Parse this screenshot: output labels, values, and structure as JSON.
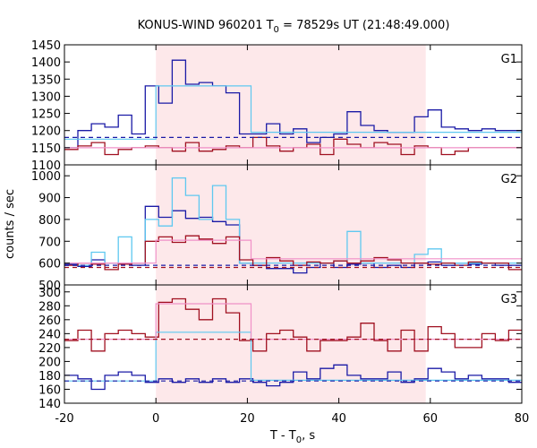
{
  "chart_data": {
    "type": "line",
    "title": {
      "prefix": "KONUS-WIND 960201 T",
      "sub": "0",
      "suffix": " = 78529s UT (21:48:49.000)"
    },
    "xlabel": {
      "prefix": "T - T",
      "sub": "0",
      "suffix": ", s"
    },
    "ylabel": "counts / sec",
    "xlim": [
      -20,
      80
    ],
    "xticks": [
      -20,
      0,
      20,
      40,
      60,
      80
    ],
    "shaded_interval": [
      0,
      59
    ],
    "colors": {
      "dark_blue": "#1a1aa6",
      "light_blue": "#5ec8f0",
      "dark_red": "#a01020",
      "pink": "#f090c8",
      "shade": "#fde8ea"
    },
    "panels": [
      {
        "label": "G1",
        "ylim": [
          1100,
          1450
        ],
        "yticks": [
          1100,
          1150,
          1200,
          1250,
          1300,
          1350,
          1400,
          1450
        ],
        "hist_start": -20,
        "hist_step": 2.944,
        "series": [
          {
            "name": "",
            "color": "dark_blue",
            "style": "step",
            "values": [
              1150,
              1200,
              1220,
              1210,
              1245,
              1190,
              1330,
              1280,
              1405,
              1335,
              1340,
              1330,
              1310,
              1190,
              1190,
              1220,
              1190,
              1205,
              1165,
              1180,
              1190,
              1255,
              1215,
              1200,
              1195,
              1195,
              1240,
              1260,
              1210,
              1205,
              1200,
              1205,
              1200,
              1200
            ]
          },
          {
            "name": "",
            "color": "dark_red",
            "style": "step",
            "values": [
              1145,
              1155,
              1165,
              1130,
              1145,
              1150,
              1155,
              1150,
              1140,
              1165,
              1140,
              1145,
              1155,
              1150,
              1180,
              1155,
              1140,
              1150,
              1160,
              1130,
              1175,
              1160,
              1150,
              1165,
              1160,
              1130,
              1155,
              1150,
              1130,
              1140,
              1150,
              1150,
              1150,
              1150
            ]
          },
          {
            "name": "",
            "color": "light_blue",
            "style": "segments",
            "segments": [
              [
                -20,
                1175,
                0,
                1175
              ],
              [
                0,
                1330,
                20.8,
                1330
              ],
              [
                20.8,
                1195,
                80,
                1195
              ]
            ]
          },
          {
            "name": "",
            "color": "pink",
            "style": "segments",
            "segments": [
              [
                -20,
                1150,
                80,
                1150
              ]
            ]
          },
          {
            "name": "",
            "color": "dark_blue",
            "style": "dashed",
            "segments": [
              [
                -20,
                1180,
                80,
                1180
              ]
            ]
          }
        ]
      },
      {
        "label": "G2",
        "ylim": [
          500,
          1050
        ],
        "yticks": [
          500,
          600,
          700,
          800,
          900,
          1000
        ],
        "hist_start": -20,
        "hist_step": 2.944,
        "series": [
          {
            "name": "",
            "color": "dark_blue",
            "style": "step",
            "values": [
              595,
              585,
              615,
              600,
              600,
              590,
              860,
              810,
              840,
              805,
              810,
              790,
              775,
              600,
              590,
              575,
              575,
              555,
              580,
              600,
              580,
              595,
              600,
              580,
              590,
              580,
              600,
              605,
              590,
              600,
              595,
              600,
              590,
              590
            ]
          },
          {
            "name": "",
            "color": "light_blue",
            "style": "step",
            "values": [
              600,
              590,
              650,
              600,
              720,
              600,
              800,
              770,
              990,
              910,
              800,
              955,
              800,
              600,
              600,
              600,
              600,
              600,
              600,
              600,
              610,
              745,
              600,
              600,
              600,
              600,
              640,
              665,
              600,
              600,
              600,
              600,
              600,
              600
            ]
          },
          {
            "name": "",
            "color": "dark_red",
            "style": "step",
            "values": [
              590,
              600,
              595,
              570,
              595,
              600,
              700,
              720,
              695,
              725,
              710,
              690,
              720,
              615,
              590,
              625,
              610,
              590,
              605,
              600,
              610,
              600,
              610,
              625,
              615,
              600,
              600,
              595,
              600,
              590,
              605,
              600,
              600,
              570
            ]
          },
          {
            "name": "",
            "color": "pink",
            "style": "segments",
            "segments": [
              [
                -20,
                600,
                0,
                600
              ],
              [
                0,
                705,
                20.8,
                705
              ],
              [
                20.8,
                620,
                80,
                620
              ]
            ]
          },
          {
            "name": "",
            "color": "dark_blue",
            "style": "dashed",
            "segments": [
              [
                -20,
                590,
                80,
                590
              ]
            ]
          },
          {
            "name": "",
            "color": "dark_red",
            "style": "dashed",
            "segments": [
              [
                -20,
                580,
                80,
                580
              ]
            ]
          }
        ]
      },
      {
        "label": "G3",
        "ylim": [
          140,
          310
        ],
        "yticks": [
          140,
          160,
          180,
          200,
          220,
          240,
          260,
          280,
          300
        ],
        "hist_start": -20,
        "hist_step": 2.944,
        "series": [
          {
            "name": "",
            "color": "dark_red",
            "style": "step",
            "values": [
              230,
              245,
              215,
              240,
              245,
              240,
              235,
              285,
              290,
              275,
              260,
              290,
              270,
              230,
              215,
              240,
              245,
              235,
              215,
              230,
              230,
              235,
              255,
              230,
              215,
              245,
              215,
              250,
              240,
              220,
              220,
              240,
              230,
              245
            ]
          },
          {
            "name": "",
            "color": "dark_blue",
            "style": "step",
            "values": [
              180,
              175,
              160,
              180,
              185,
              180,
              170,
              175,
              170,
              175,
              170,
              175,
              170,
              175,
              170,
              165,
              170,
              185,
              175,
              190,
              195,
              180,
              175,
              175,
              185,
              170,
              175,
              190,
              185,
              175,
              180,
              175,
              175,
              170
            ]
          },
          {
            "name": "",
            "color": "light_blue",
            "style": "segments",
            "segments": [
              [
                -20,
                172,
                0,
                172
              ],
              [
                0,
                242,
                20.8,
                242
              ],
              [
                20.8,
                173,
                80,
                173
              ]
            ]
          },
          {
            "name": "",
            "color": "pink",
            "style": "segments",
            "segments": [
              [
                -20,
                232,
                0,
                232
              ],
              [
                0,
                283,
                20.8,
                283
              ],
              [
                20.8,
                232,
                80,
                232
              ]
            ]
          },
          {
            "name": "",
            "color": "dark_red",
            "style": "dashed",
            "segments": [
              [
                -20,
                232,
                80,
                232
              ]
            ]
          },
          {
            "name": "",
            "color": "dark_blue",
            "style": "dashed",
            "segments": [
              [
                -20,
                172,
                80,
                172
              ]
            ]
          }
        ]
      }
    ]
  }
}
